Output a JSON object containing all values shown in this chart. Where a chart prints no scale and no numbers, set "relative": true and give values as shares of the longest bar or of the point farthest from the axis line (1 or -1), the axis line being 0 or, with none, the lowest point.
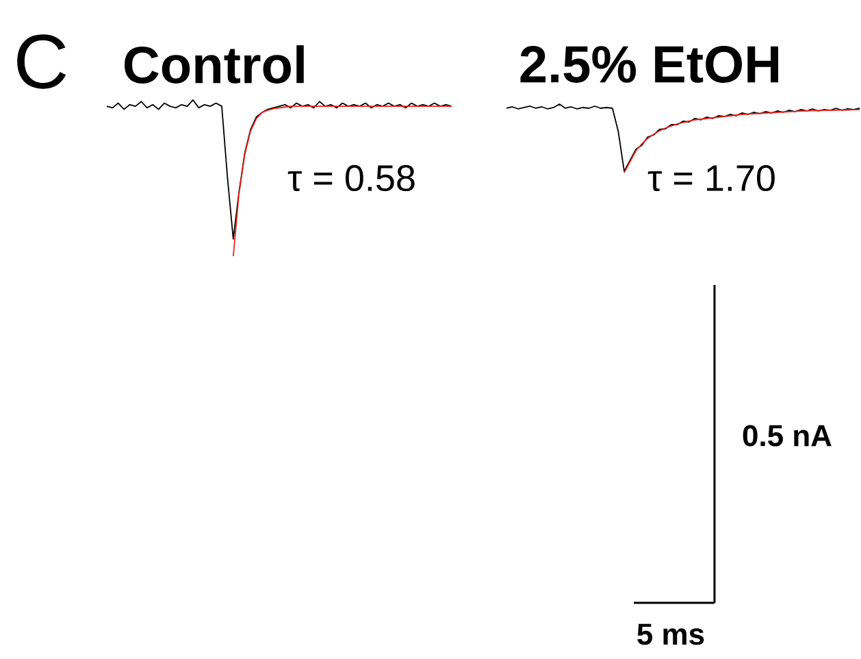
{
  "chart_data": [
    {
      "type": "line",
      "title": "Control",
      "relative": true,
      "annotations": [
        "C",
        "τ = 0.58"
      ],
      "categories": [
        null,
        null,
        null,
        null,
        null,
        null,
        null,
        null,
        null,
        null,
        null,
        null,
        null,
        null,
        null,
        null,
        null,
        null,
        null,
        null,
        null,
        null,
        null,
        null,
        null,
        null,
        null,
        null,
        null,
        null,
        null,
        null,
        null,
        null,
        null,
        null,
        null,
        null,
        null,
        null,
        null,
        null,
        null,
        null,
        null,
        null,
        null,
        null,
        null,
        null,
        null,
        null,
        null,
        null,
        null,
        null,
        null,
        null,
        null,
        null,
        null
      ],
      "series": [
        {
          "color": "#000000",
          "values": [
            0.96,
            0.95,
            0.98,
            0.94,
            0.97,
            0.96,
            0.99,
            0.95,
            0.97,
            0.94,
            0.98,
            0.96,
            0.95,
            0.97,
            0.96,
            1.0,
            0.95,
            0.97,
            0.96,
            0.98,
            0.96,
            0.5,
            0.11,
            0.41,
            0.66,
            0.81,
            0.89,
            0.92,
            0.94,
            0.95,
            0.96,
            0.97,
            0.95,
            0.98,
            0.96,
            0.97,
            0.95,
            0.99,
            0.96,
            0.97,
            0.95,
            0.98,
            0.96,
            0.97,
            0.96,
            0.98,
            0.95,
            0.97,
            0.96,
            0.98,
            0.96,
            0.97,
            0.95,
            0.98,
            0.96,
            0.97,
            0.96,
            0.98,
            0.96,
            0.97,
            0.96
          ]
        },
        {
          "color": "#e8231c",
          "values": [
            null,
            null,
            null,
            null,
            null,
            null,
            null,
            null,
            null,
            null,
            null,
            null,
            null,
            null,
            null,
            null,
            null,
            null,
            null,
            null,
            null,
            null,
            0,
            0.4,
            0.65,
            0.8,
            0.88,
            0.92,
            0.935,
            0.945,
            0.95,
            0.955,
            0.96,
            0.96,
            0.96,
            0.96,
            0.96,
            0.96,
            0.96,
            0.96,
            0.96,
            0.96,
            0.96,
            0.96,
            0.96,
            0.96,
            0.96,
            0.96,
            0.96,
            0.96,
            0.96,
            0.96,
            0.96,
            0.96,
            0.96,
            0.96,
            0.96,
            0.96,
            0.96,
            0.96,
            0.96
          ]
        }
      ]
    },
    {
      "type": "line",
      "title": "2.5% EtOH",
      "relative": true,
      "annotations": [
        "τ = 1.70",
        "0.5 nA",
        "5 ms"
      ],
      "categories": [
        null,
        null,
        null,
        null,
        null,
        null,
        null,
        null,
        null,
        null,
        null,
        null,
        null,
        null,
        null,
        null,
        null,
        null,
        null,
        null,
        null,
        null,
        null,
        null,
        null,
        null,
        null,
        null,
        null,
        null,
        null,
        null,
        null,
        null,
        null,
        null,
        null,
        null,
        null,
        null,
        null,
        null,
        null,
        null,
        null,
        null,
        null,
        null,
        null,
        null,
        null,
        null,
        null,
        null,
        null,
        null,
        null,
        null,
        null,
        null,
        null
      ],
      "series": [
        {
          "color": "#000000",
          "values": [
            0.94,
            0.96,
            0.93,
            0.95,
            0.97,
            0.94,
            0.96,
            0.93,
            0.95,
            1.0,
            0.94,
            0.96,
            0.93,
            0.95,
            0.94,
            0.97,
            0.94,
            0.95,
            0.94,
            0.6,
            0.02,
            0.18,
            0.34,
            0.4,
            0.52,
            0.55,
            0.63,
            0.64,
            0.7,
            0.7,
            0.75,
            0.74,
            0.79,
            0.77,
            0.81,
            0.79,
            0.83,
            0.82,
            0.85,
            0.83,
            0.87,
            0.85,
            0.88,
            0.86,
            0.89,
            0.87,
            0.9,
            0.88,
            0.91,
            0.89,
            0.92,
            0.9,
            0.93,
            0.9,
            0.92,
            0.91,
            0.94,
            0.91,
            0.93,
            0.92,
            0.94
          ]
        },
        {
          "color": "#e8231c",
          "values": [
            null,
            null,
            null,
            null,
            null,
            null,
            null,
            null,
            null,
            null,
            null,
            null,
            null,
            null,
            null,
            null,
            null,
            null,
            null,
            null,
            0,
            0.16,
            0.32,
            0.42,
            0.5,
            0.56,
            0.61,
            0.65,
            0.68,
            0.71,
            0.73,
            0.75,
            0.77,
            0.78,
            0.79,
            0.8,
            0.81,
            0.82,
            0.83,
            0.84,
            0.85,
            0.855,
            0.86,
            0.865,
            0.87,
            0.875,
            0.88,
            0.885,
            0.89,
            0.893,
            0.9,
            0.902,
            0.905,
            0.907,
            0.91,
            0.91,
            0.912,
            0.915,
            0.915,
            0.918,
            0.92
          ]
        }
      ]
    }
  ]
}
